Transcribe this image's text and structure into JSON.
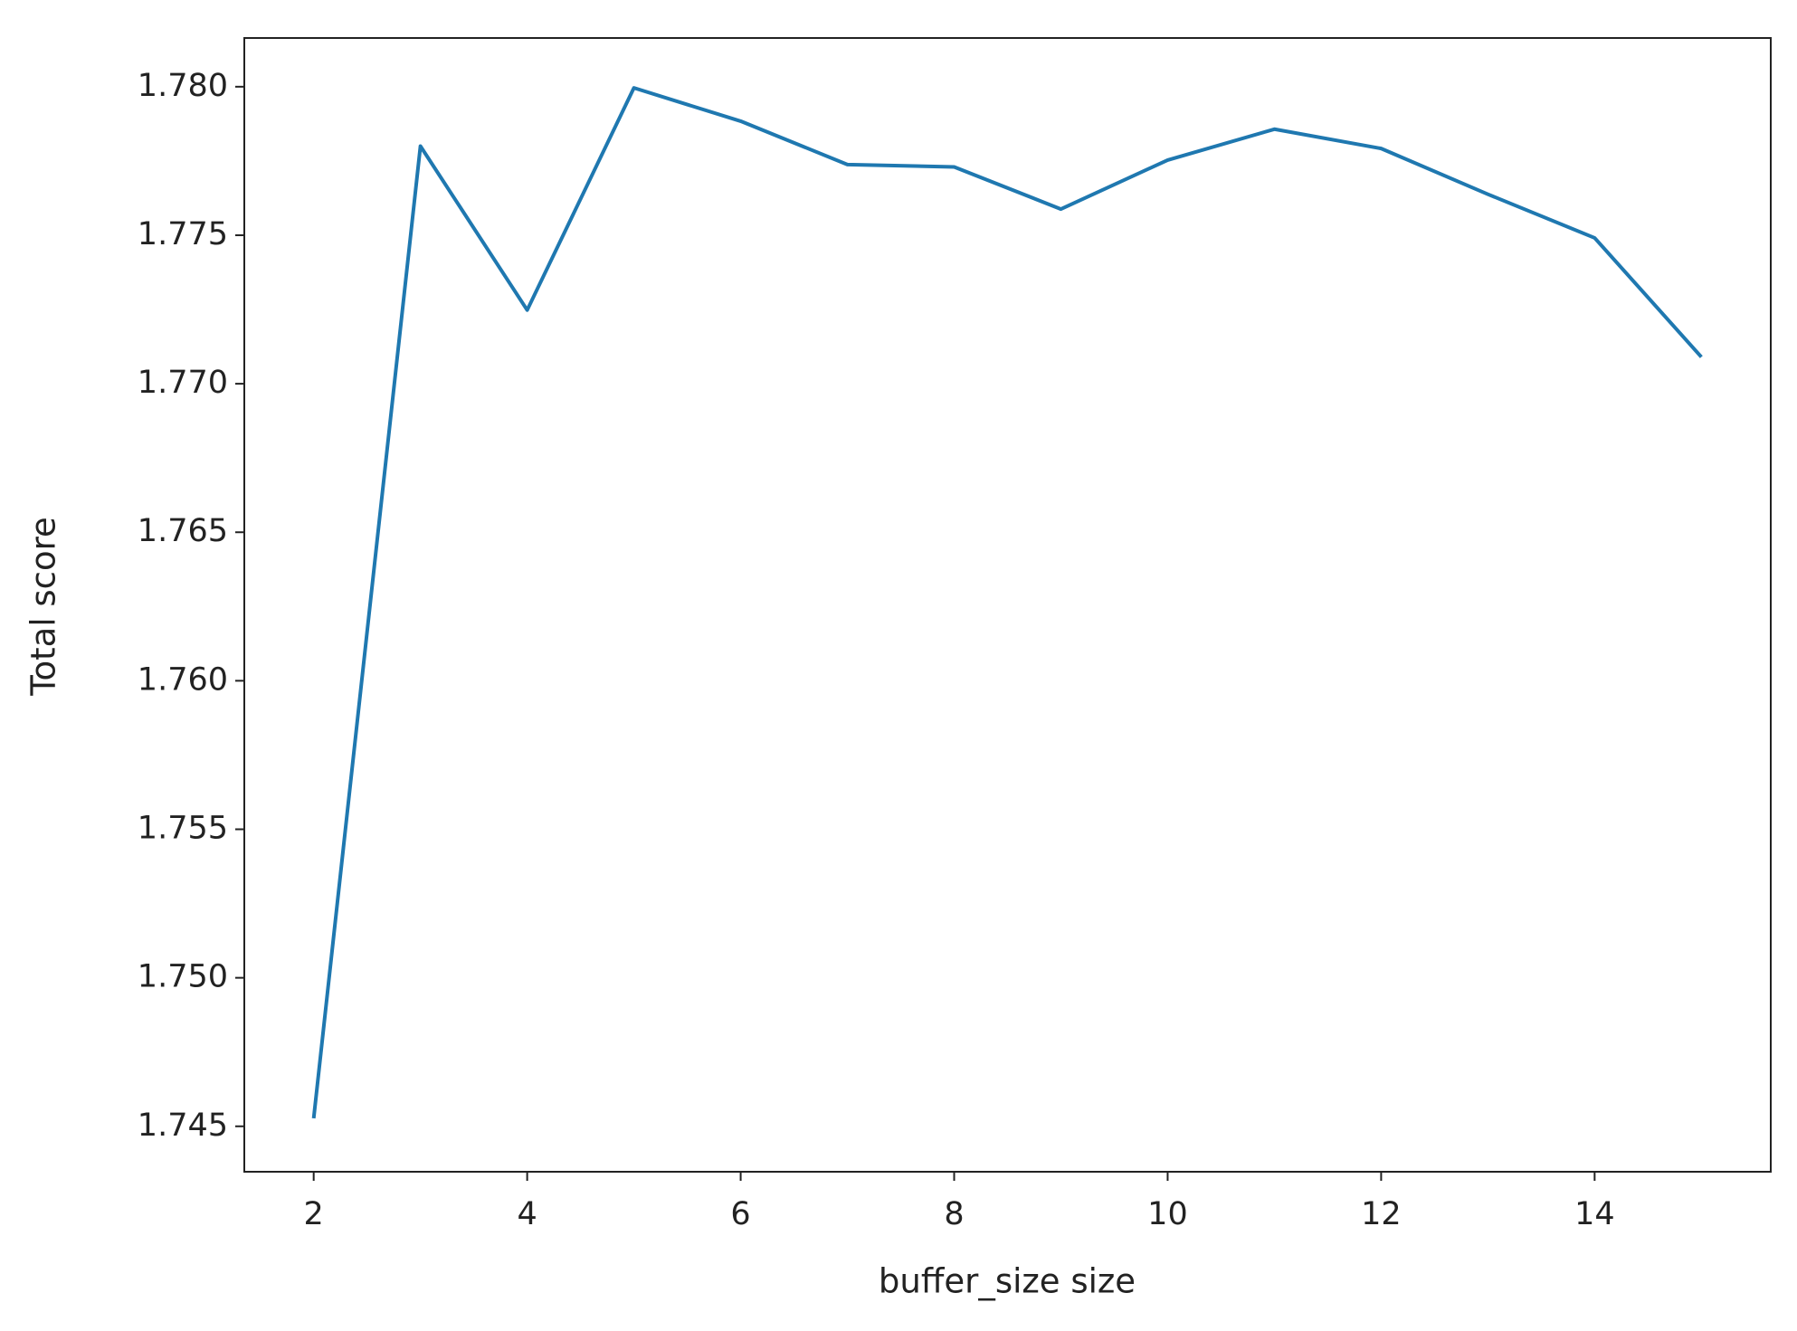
{
  "chart_data": {
    "type": "line",
    "xlabel": "buffer_size size",
    "ylabel": "Total score",
    "x": [
      2,
      3,
      4,
      5,
      6,
      7,
      8,
      9,
      10,
      11,
      12,
      13,
      14,
      15
    ],
    "series": [
      {
        "color": "#1f78b0",
        "values": [
          1.74527,
          1.778,
          1.77248,
          1.77996,
          1.77884,
          1.77738,
          1.7773,
          1.77588,
          1.77753,
          1.77857,
          1.77792,
          1.77638,
          1.77491,
          1.7709
        ]
      }
    ],
    "xlim": [
      1.35,
      15.65
    ],
    "ylim": [
      1.74347,
      1.78164
    ],
    "xticks": [
      2,
      4,
      6,
      8,
      10,
      12,
      14
    ],
    "yticks": [
      {
        "value": 1.745,
        "label": "1.745"
      },
      {
        "value": 1.75,
        "label": "1.750"
      },
      {
        "value": 1.755,
        "label": "1.755"
      },
      {
        "value": 1.76,
        "label": "1.760"
      },
      {
        "value": 1.765,
        "label": "1.765"
      },
      {
        "value": 1.77,
        "label": "1.770"
      },
      {
        "value": 1.775,
        "label": "1.775"
      },
      {
        "value": 1.78,
        "label": "1.780"
      }
    ],
    "grid": false
  }
}
